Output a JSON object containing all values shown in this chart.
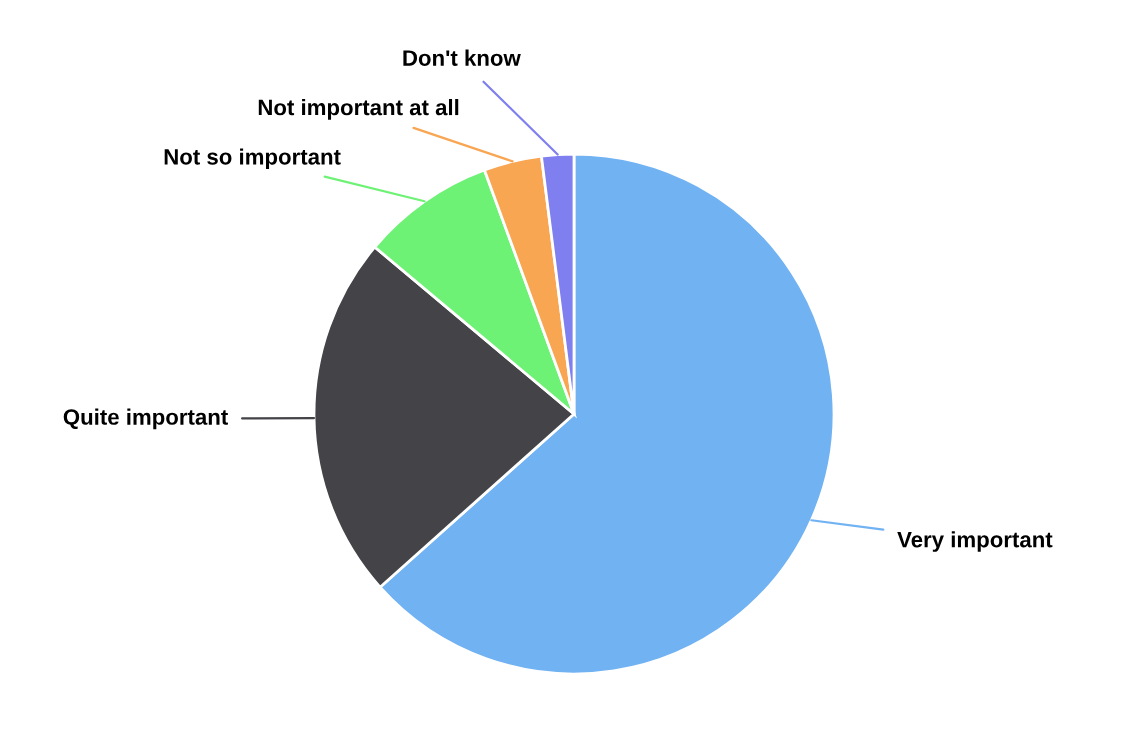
{
  "chart_data": {
    "type": "pie",
    "categories": [
      "Very important",
      "Quite important",
      "Not so important",
      "Not important at all",
      "Don't know"
    ],
    "values": [
      63.4,
      22.7,
      8.3,
      3.6,
      2.0
    ],
    "colors": [
      "#71b2f2",
      "#434348",
      "#6ef275",
      "#f9a653",
      "#7f7ff0"
    ]
  }
}
